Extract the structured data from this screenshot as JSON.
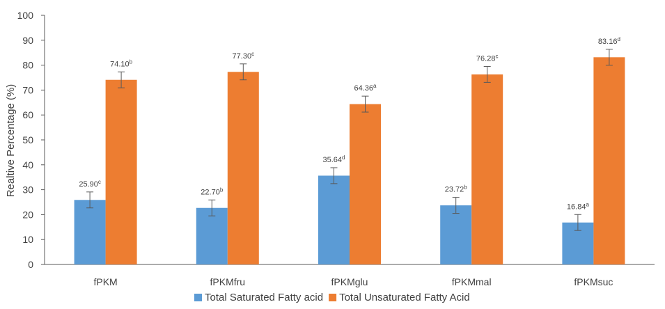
{
  "chart_data": {
    "type": "bar",
    "ylabel": "Realtive Percentage (%)",
    "ylim": [
      0,
      100
    ],
    "yticks": [
      0,
      10,
      20,
      30,
      40,
      50,
      60,
      70,
      80,
      90,
      100
    ],
    "grid": false,
    "legend_position": "bottom",
    "categories": [
      "fPKM",
      "fPKMfru",
      "fPKMglu",
      "fPKMmal",
      "fPKMsuc"
    ],
    "series": [
      {
        "name": "Total Saturated Fatty acid",
        "color": "#5b9bd5",
        "values": [
          25.9,
          22.7,
          35.64,
          23.72,
          16.84
        ],
        "errors": [
          3.2,
          3.2,
          3.2,
          3.2,
          3.2
        ],
        "labels": [
          "25.90",
          "22.70",
          "35.64",
          "23.72",
          "16.84"
        ],
        "superscripts": [
          "c",
          "b",
          "d",
          "b",
          "a"
        ]
      },
      {
        "name": "Total Unsaturated Fatty Acid",
        "color": "#ed7d31",
        "values": [
          74.1,
          77.3,
          64.36,
          76.28,
          83.16
        ],
        "errors": [
          3.2,
          3.2,
          3.2,
          3.2,
          3.2
        ],
        "labels": [
          "74.10",
          "77.30",
          "64.36",
          "76.28",
          "83.16"
        ],
        "superscripts": [
          "b",
          "c",
          "a",
          "c",
          "d"
        ]
      }
    ]
  }
}
